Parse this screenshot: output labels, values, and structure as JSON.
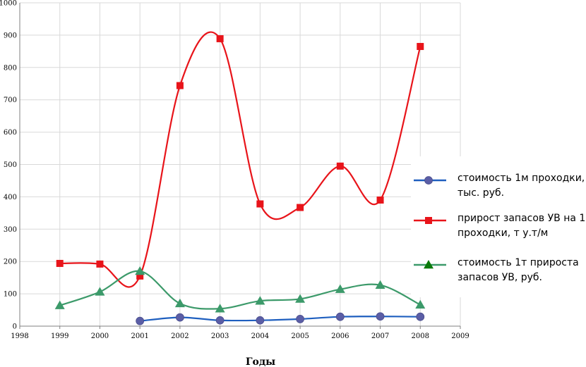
{
  "chart_data": {
    "type": "line",
    "xlabel": "Годы",
    "ylabel": "",
    "xlim": [
      1998,
      2009
    ],
    "ylim": [
      0,
      1000
    ],
    "x_ticks": [
      "1998",
      "1999",
      "2000",
      "2001",
      "2002",
      "2003",
      "2004",
      "2005",
      "2006",
      "2007",
      "2008",
      "2009"
    ],
    "y_ticks": [
      "0",
      "100",
      "200",
      "300",
      "400",
      "500",
      "600",
      "700",
      "800",
      "900",
      "1000"
    ],
    "grid": true,
    "smooth": true,
    "legend_placement": "right",
    "series": [
      {
        "name": "стоимость 1м проходки, тыс. руб.",
        "legend_lines": [
          "стоимость 1м проходки,",
          "тыс. руб."
        ],
        "color": "#1f5fbf",
        "marker": "circle",
        "marker_color": "#5b5ea6",
        "x": [
          2001,
          2002,
          2003,
          2004,
          2005,
          2006,
          2007,
          2008
        ],
        "values": [
          16,
          27,
          18,
          18,
          22,
          29,
          30,
          29
        ]
      },
      {
        "name": "прирост запасов УВ на 1м проходки, т у.т/м",
        "legend_lines": [
          "прирост запасов УВ на 1м",
          "проходки, т у.т/м"
        ],
        "color": "#e8141a",
        "marker": "square",
        "marker_color": "#e8141a",
        "x": [
          1999,
          2000,
          2001,
          2002,
          2003,
          2004,
          2005,
          2006,
          2007,
          2008
        ],
        "values": [
          194,
          192,
          155,
          744,
          889,
          378,
          367,
          495,
          390,
          865
        ]
      },
      {
        "name": "стоимость 1т прироста запасов УВ, руб.",
        "legend_lines": [
          "стоимость 1т прироста",
          "запасов УВ, руб."
        ],
        "color": "#3c9a6a",
        "marker": "triangle",
        "marker_color": "#3c9a6a",
        "legend_marker_color": "#0a7a0a",
        "x": [
          1999,
          2000,
          2001,
          2002,
          2003,
          2004,
          2005,
          2006,
          2007,
          2008
        ],
        "values": [
          64,
          106,
          170,
          70,
          54,
          78,
          84,
          114,
          127,
          66
        ]
      }
    ]
  }
}
